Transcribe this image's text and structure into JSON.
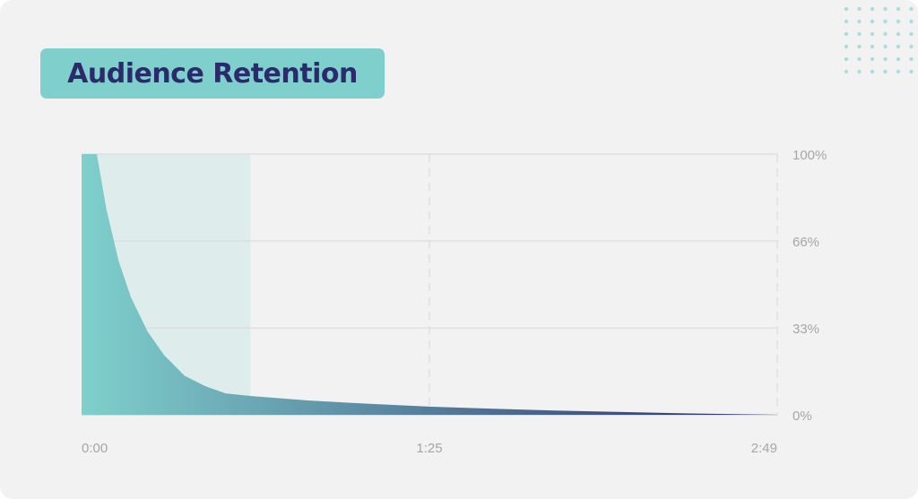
{
  "title": "Audience Retention",
  "colors": {
    "card_background": "#f2f2f2",
    "title_badge": "#7fd0cc",
    "title_text": "#2b2a6b",
    "gradient_start": "#7fd0cc",
    "gradient_end": "#2b2a6b",
    "highlight": "#dfecec",
    "grid": "#dcdcdc",
    "tick_label": "#a6a6a6",
    "dots": "#a9dede"
  },
  "icons": [
    "dot-grid-decoration"
  ],
  "chart_data": {
    "type": "area",
    "x_tick_labels": [
      "0:00",
      "1:25",
      "2:49"
    ],
    "y_tick_labels": [
      "100%",
      "66%",
      "33%",
      "0%"
    ],
    "xlim": [
      0,
      169
    ],
    "ylim": [
      0,
      100
    ],
    "y_unit": "%",
    "grid": true,
    "highlight_range": [
      0,
      41
    ],
    "x": [
      0,
      3.7,
      6,
      9,
      12,
      16,
      20,
      25,
      30,
      35,
      41,
      55,
      70,
      85,
      100,
      115,
      130,
      145,
      160,
      169
    ],
    "y": [
      100,
      100,
      79,
      59,
      45,
      32,
      23,
      15,
      11,
      8.2,
      7.2,
      5.5,
      4.2,
      3.1,
      2.3,
      1.6,
      1.1,
      0.6,
      0.2,
      0
    ]
  }
}
